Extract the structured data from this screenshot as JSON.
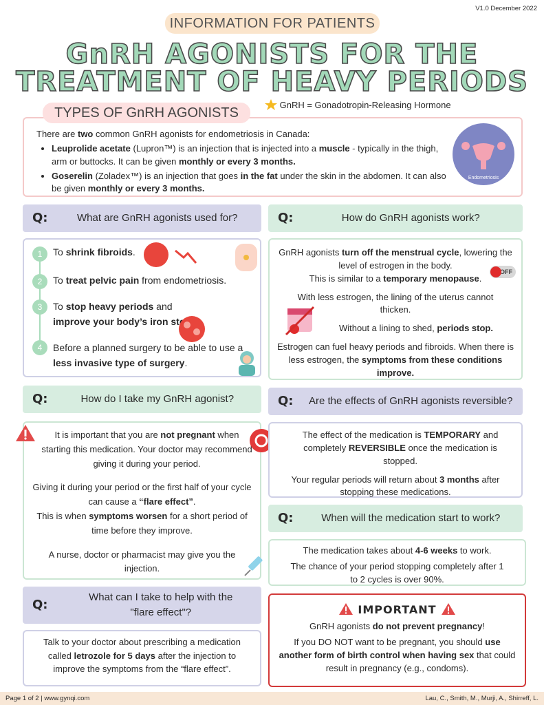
{
  "header": {
    "version": "V1.0 December 2022",
    "kicker": "INFORMATION FOR PATIENTS",
    "title": [
      "GnRH AGONISTS FOR THE",
      "TREATMENT OF HEAVY PERIODS"
    ]
  },
  "types": {
    "heading": "TYPES OF GnRH AGONISTS",
    "note": "GnRH = Gonadotropin-Releasing Hormone",
    "intro": [
      "There are ",
      "two",
      " common GnRH agonists for endometriosis in Canada:"
    ],
    "items": [
      [
        "Leuprolide acetate",
        " (Lupron™) is an injection that is injected into a ",
        "muscle",
        " - typically in the thigh, arm or buttocks. It can be given ",
        "monthly or every 3 months."
      ],
      [
        "Goserelin",
        " (Zoladex™) is an injection that goes ",
        "in the fat",
        " under the skin in the abdomen. It can also be given ",
        "monthly or every 3 months."
      ]
    ],
    "image_label": "Endometriosis"
  },
  "uses": {
    "q_label": "Q:",
    "question": "What are GnRH agonists used for?",
    "items": [
      {
        "number": 1,
        "text": [
          "To ",
          "shrink fibroids",
          "."
        ]
      },
      {
        "number": 2,
        "text": [
          "To ",
          "treat pelvic pain",
          " from endometriosis."
        ]
      },
      {
        "number": 3,
        "text": [
          "To ",
          "stop heavy periods",
          " and ",
          "improve your body’s iron stores."
        ]
      },
      {
        "number": 4,
        "text": [
          "Before a planned surgery to be able to use a ",
          "less invasive type of surgery",
          "."
        ]
      }
    ]
  },
  "work": {
    "q_label": "Q:",
    "question": "How do GnRH agonists work?",
    "badge": "OFF",
    "paragraphs": [
      [
        "GnRH agonists ",
        "turn off the menstrual cycle",
        ", lowering the level of estrogen in the body."
      ],
      [
        "This is similar to a ",
        "temporary menopause",
        "."
      ],
      [
        "With less estrogen, the lining of the uterus cannot thicken."
      ],
      [
        "Without a lining to shed, ",
        "periods stop."
      ],
      [
        "Estrogen can fuel heavy periods and fibroids. When there is less estrogen, the ",
        "symptoms from these conditions improve."
      ]
    ]
  },
  "take": {
    "q_label": "Q:",
    "question": "How do I take my GnRH agonist?",
    "paragraphs": [
      [
        "It is important that you are ",
        "not pregnant",
        " when starting this medication.  Your doctor may recommend giving it during your period."
      ],
      [
        "Giving it during your period or the first half of your cycle can cause a ",
        "“flare effect”",
        ".",
        "This is when ",
        "symptoms worsen",
        " for a short period of time before they improve."
      ],
      [
        "A nurse, doctor or pharmacist may give you the injection."
      ]
    ]
  },
  "reversible": {
    "q_label": "Q:",
    "question": "Are the effects of GnRH agonists reversible?",
    "paragraphs": [
      [
        "The effect of the medication is ",
        "TEMPORARY",
        " and completely ",
        "REVERSIBLE",
        " once the medication is stopped."
      ],
      [
        "Your regular periods will return about ",
        "3 months",
        " after stopping these medications."
      ]
    ]
  },
  "start": {
    "q_label": "Q:",
    "question": "When will the medication start to work?",
    "paragraphs": [
      [
        "The medication takes about ",
        "4-6 weeks",
        " to work."
      ],
      [
        "The chance of your period stopping completely after 1 to 2 cycles is over 90%."
      ]
    ]
  },
  "flare": {
    "q_label": "Q:",
    "question": "What can I take to help with the \"flare effect\"?",
    "paragraphs": [
      [
        "Talk to your doctor about prescribing a medication called ",
        "letrozole for 5 days",
        " after the injection to improve the symptoms from the “flare effect”."
      ]
    ]
  },
  "important": {
    "heading": "IMPORTANT",
    "paragraphs": [
      [
        "GnRH agonists ",
        "do not prevent pregnancy",
        "!"
      ],
      [
        "If you DO NOT want to be pregnant, you should ",
        "use another form of birth control when having sex",
        " that could result in pregnancy (e.g., condoms)."
      ]
    ]
  },
  "footer": {
    "left": "Page 1 of 2 | www.gynqi.com",
    "right": "Lau, C., Smith, M., Murji, A., Shirreff, L."
  }
}
